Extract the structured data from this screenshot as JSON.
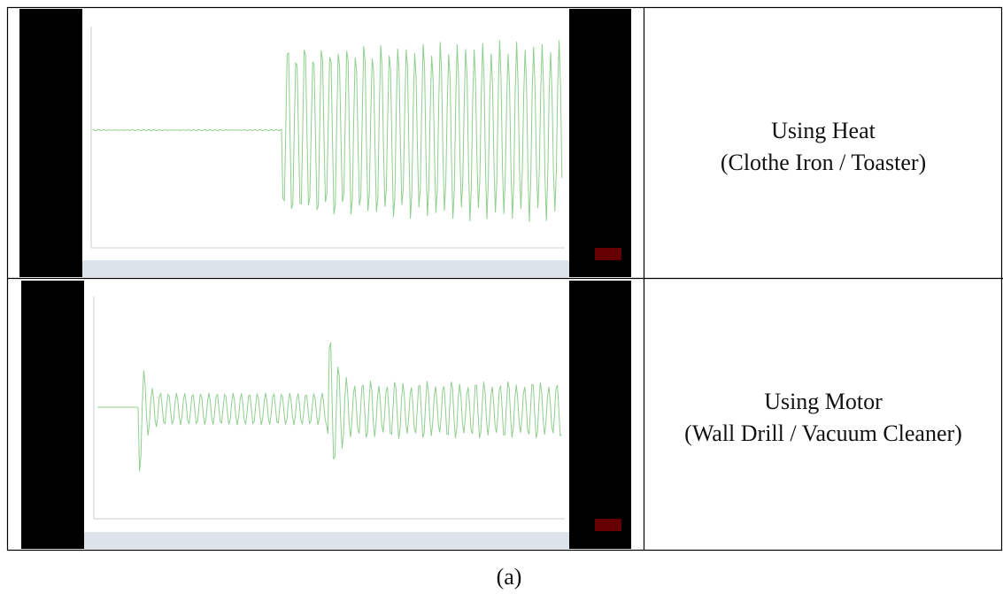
{
  "table": {
    "rows": [
      {
        "label": [
          "Using Heat",
          "(Clothe Iron / Toaster)"
        ]
      },
      {
        "label": [
          "Using Motor",
          "(Wall Drill / Vacuum Cleaner)"
        ]
      }
    ]
  },
  "caption": "(a)"
}
